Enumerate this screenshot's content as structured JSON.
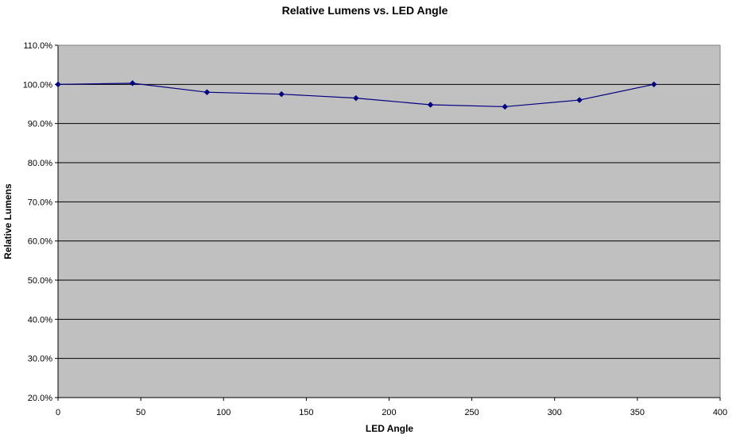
{
  "chart_data": {
    "type": "line",
    "title": "Relative Lumens vs. LED Angle",
    "xlabel": "LED Angle",
    "ylabel": "Relative Lumens",
    "xlim": [
      0,
      400
    ],
    "ylim": [
      20,
      110
    ],
    "x_ticks": [
      0,
      50,
      100,
      150,
      200,
      250,
      300,
      350,
      400
    ],
    "x_tick_labels": [
      "0",
      "50",
      "100",
      "150",
      "200",
      "250",
      "300",
      "350",
      "400"
    ],
    "y_ticks": [
      20,
      30,
      40,
      50,
      60,
      70,
      80,
      90,
      100,
      110
    ],
    "y_tick_labels": [
      "20.0%",
      "30.0%",
      "40.0%",
      "50.0%",
      "60.0%",
      "70.0%",
      "80.0%",
      "90.0%",
      "100.0%",
      "110.0%"
    ],
    "grid": "horizontal",
    "legend": "none",
    "series": [
      {
        "x": [
          0,
          45,
          90,
          135,
          180,
          225,
          270,
          315,
          360
        ],
        "values": [
          100.0,
          100.3,
          98.0,
          97.5,
          96.5,
          94.8,
          94.3,
          96.0,
          100.0
        ],
        "color": "#000080",
        "marker": "diamond"
      }
    ],
    "plot_background": "#c0c0c0",
    "grid_color": "#000000"
  }
}
